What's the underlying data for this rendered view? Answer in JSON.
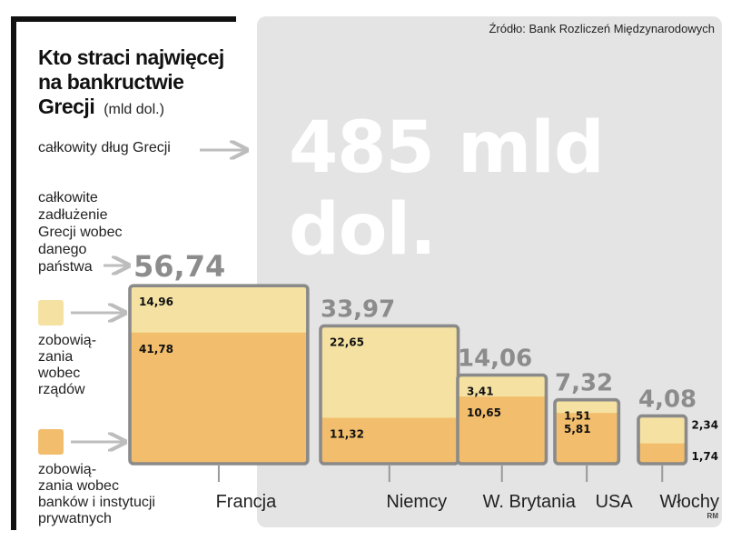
{
  "source": "Źródło: Bank Rozliczeń Międzynarodowych",
  "title_lines": [
    "Kto straci najwięcej",
    "na bankructwie",
    "Grecji"
  ],
  "unit": "(mld dol.)",
  "total": {
    "label": "całkowity dług Grecji",
    "value": "485 mld dol."
  },
  "total_label": [
    "całkowite",
    "zadłużenie",
    "Grecji wobec",
    "danego",
    "państwa"
  ],
  "legend": {
    "gov_label": [
      "zobowią-",
      "zania",
      "wobec",
      "rządów"
    ],
    "banks_label": [
      "zobowią-",
      "zania wobec",
      "banków i instytucji",
      "prywatnych"
    ]
  },
  "colors": {
    "gov": "#f5e2a2",
    "banks": "#f2bd6c",
    "border": "#8a8a8a",
    "total_text": "#8c8c8c"
  },
  "chart_data": {
    "type": "bar",
    "categories": [
      "Francja",
      "Niemcy",
      "W. Brytania",
      "USA",
      "Włochy"
    ],
    "totals": [
      "56,74",
      "33,97",
      "14,06",
      "7,32",
      "4,08"
    ],
    "series": [
      {
        "values": [
          14.96,
          22.65,
          3.41,
          1.51,
          2.34
        ],
        "labels": [
          "14,96",
          "22,65",
          "3,41",
          "1,51",
          "2,34"
        ]
      },
      {
        "values": [
          41.78,
          11.32,
          10.65,
          5.81,
          1.74
        ],
        "labels": [
          "41,78",
          "11,32",
          "10,65",
          "5,81",
          "1,74"
        ]
      }
    ]
  },
  "credit": "RM"
}
